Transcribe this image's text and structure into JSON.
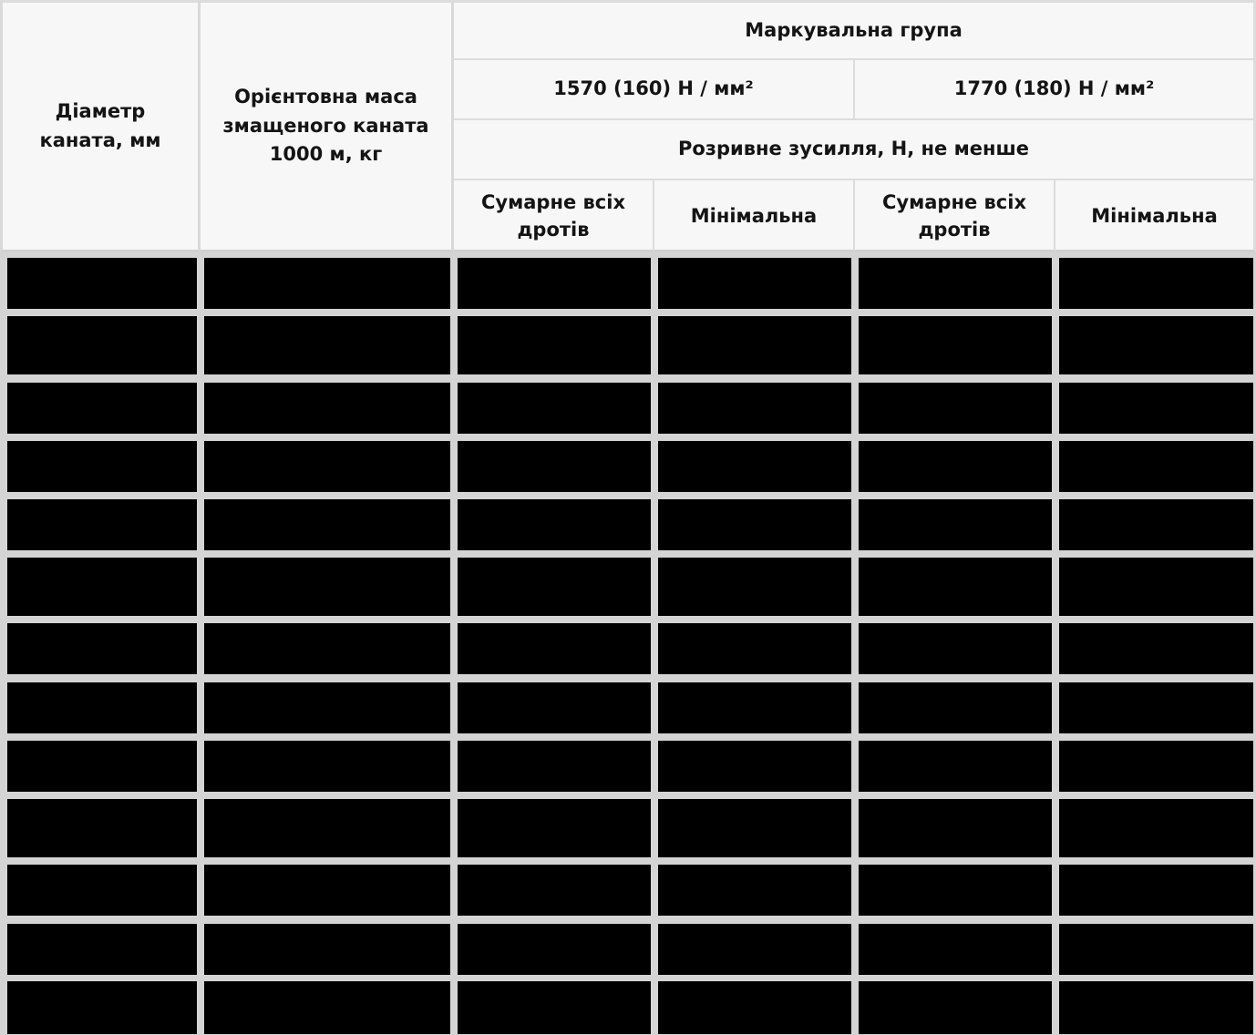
{
  "table": {
    "header": {
      "diameter": "Діаметр каната, мм",
      "mass": "Орієнтовна маса змащеного каната 1000 м, кг",
      "marking_group": "Маркувальна група",
      "groups": [
        "1570 (160) Н / мм²",
        "1770 (180) Н / мм²"
      ],
      "breaking_force": "Розривне зусилля, Н, не менше",
      "sub_columns": [
        "Сумарне всіх дротів",
        "Мінімальна",
        "Сумарне всіх дротів",
        "Мінімальна"
      ]
    },
    "body_rows": [
      [
        "",
        "",
        "",
        "",
        "",
        ""
      ],
      [
        "",
        "",
        "",
        "",
        "",
        ""
      ],
      [
        "",
        "",
        "",
        "",
        "",
        ""
      ],
      [
        "",
        "",
        "",
        "",
        "",
        ""
      ],
      [
        "",
        "",
        "",
        "",
        "",
        ""
      ],
      [
        "",
        "",
        "",
        "",
        "",
        ""
      ],
      [
        "",
        "",
        "",
        "",
        "",
        ""
      ],
      [
        "",
        "",
        "",
        "",
        "",
        ""
      ],
      [
        "",
        "",
        "",
        "",
        "",
        ""
      ],
      [
        "",
        "",
        "",
        "",
        "",
        ""
      ],
      [
        "",
        "",
        "",
        "",
        "",
        ""
      ],
      [
        "",
        "",
        "",
        "",
        "",
        ""
      ],
      [
        "",
        "",
        "",
        "",
        "",
        ""
      ]
    ]
  }
}
